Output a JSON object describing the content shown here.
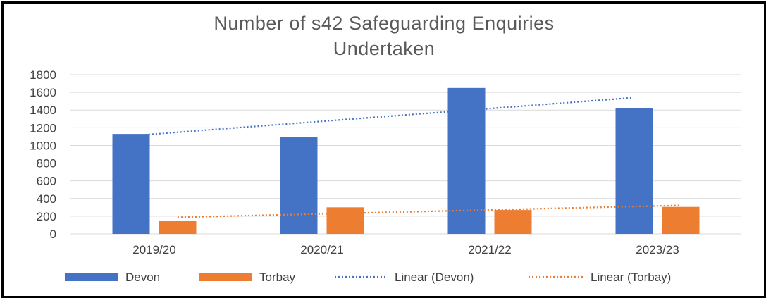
{
  "chart_data": {
    "type": "bar",
    "title_lines": [
      "Number of s42 Safeguarding Enquiries",
      "Undertaken"
    ],
    "categories": [
      "2019/20",
      "2020/21",
      "2021/22",
      "2023/23"
    ],
    "series": [
      {
        "name": "Devon",
        "color": "#4472C4",
        "values": [
          1130,
          1095,
          1650,
          1425
        ]
      },
      {
        "name": "Torbay",
        "color": "#ED7D31",
        "values": [
          145,
          300,
          270,
          305
        ]
      }
    ],
    "trendlines": [
      {
        "name": "Linear (Devon)",
        "type": "linear",
        "of": "Devon",
        "color": "#4472C4"
      },
      {
        "name": "Linear (Torbay)",
        "type": "linear",
        "of": "Torbay",
        "color": "#ED7D31"
      }
    ],
    "ylim": [
      0,
      1800
    ],
    "yticks": [
      "0",
      "200",
      "400",
      "600",
      "800",
      "1000",
      "1200",
      "1400",
      "1600",
      "1800"
    ],
    "grid": true,
    "legend_position": "bottom"
  }
}
